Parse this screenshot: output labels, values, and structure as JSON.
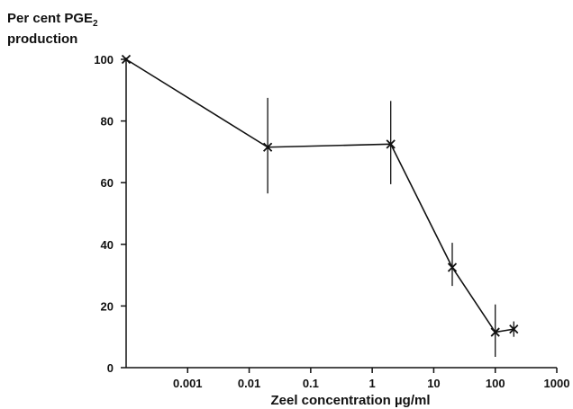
{
  "chart_data": {
    "type": "line",
    "title": "",
    "ylabel_line1": "Per cent PGE",
    "ylabel_sub": "2",
    "ylabel_line2": "production",
    "xlabel": "Zeel concentration µg/ml",
    "x_scale": "log",
    "xlim": [
      0.0001,
      1000
    ],
    "ylim": [
      0,
      100
    ],
    "x_ticks": [
      {
        "value": 0.001,
        "label": "0.001"
      },
      {
        "value": 0.01,
        "label": "0.01"
      },
      {
        "value": 0.1,
        "label": "0.1"
      },
      {
        "value": 1,
        "label": "1"
      },
      {
        "value": 10,
        "label": "10"
      },
      {
        "value": 100,
        "label": "100"
      },
      {
        "value": 1000,
        "label": "1000"
      }
    ],
    "y_ticks": [
      {
        "value": 0,
        "label": "0"
      },
      {
        "value": 20,
        "label": "20"
      },
      {
        "value": 40,
        "label": "40"
      },
      {
        "value": 60,
        "label": "60"
      },
      {
        "value": 80,
        "label": "80"
      },
      {
        "value": 100,
        "label": "100"
      }
    ],
    "grid": false,
    "marker": "x",
    "color": "#111111",
    "points": [
      {
        "x": 0.0001,
        "y": 100,
        "err_low": null,
        "err_high": null
      },
      {
        "x": 0.02,
        "y": 71.5,
        "err_low": 56.5,
        "err_high": 87.5
      },
      {
        "x": 2,
        "y": 72.5,
        "err_low": 59.5,
        "err_high": 86.5
      },
      {
        "x": 20,
        "y": 32.5,
        "err_low": 26.5,
        "err_high": 40.5
      },
      {
        "x": 100,
        "y": 11.5,
        "err_low": 3.5,
        "err_high": 20.5
      },
      {
        "x": 200,
        "y": 12.5,
        "err_low": 10,
        "err_high": 15
      }
    ]
  }
}
